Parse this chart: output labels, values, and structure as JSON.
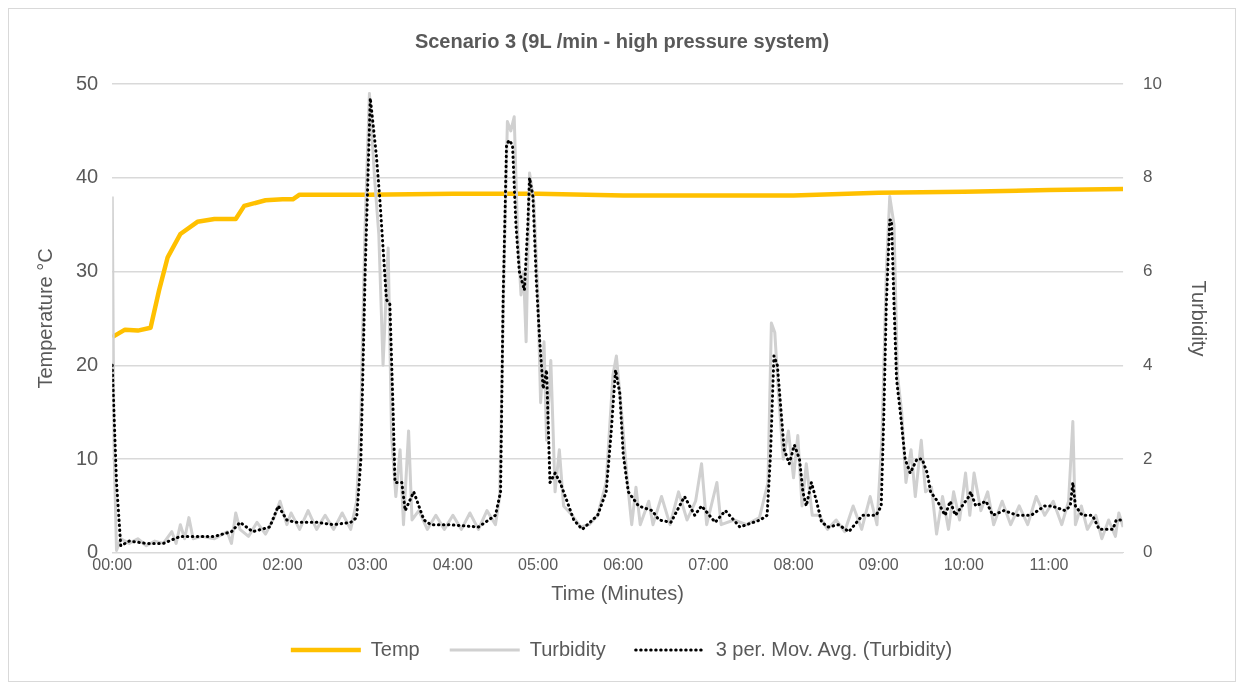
{
  "chart_data": {
    "type": "line",
    "title": "Scenario 3 (9L /min - high pressure system)",
    "xlabel": "Time (Minutes)",
    "ylabel": "Temperature °C",
    "y2label": "Turbidity",
    "xlim": [
      0,
      11.87
    ],
    "xticks": [
      {
        "value": 0,
        "label": "00:00"
      },
      {
        "value": 1,
        "label": "01:00"
      },
      {
        "value": 2,
        "label": "02:00"
      },
      {
        "value": 3,
        "label": "03:00"
      },
      {
        "value": 4,
        "label": "04:00"
      },
      {
        "value": 5,
        "label": "05:00"
      },
      {
        "value": 6,
        "label": "06:00"
      },
      {
        "value": 7,
        "label": "07:00"
      },
      {
        "value": 8,
        "label": "08:00"
      },
      {
        "value": 9,
        "label": "09:00"
      },
      {
        "value": 10,
        "label": "10:00"
      },
      {
        "value": 11,
        "label": "11:00"
      }
    ],
    "ylim": [
      0,
      50
    ],
    "yticks": [
      0,
      10,
      20,
      30,
      40,
      50
    ],
    "y2lim": [
      0,
      10
    ],
    "y2ticks": [
      0,
      2,
      4,
      6,
      8,
      10
    ],
    "grid": "y",
    "legend": "bottom",
    "marker": "none",
    "series": [
      {
        "name": "Temp",
        "color": "#ffc000",
        "line_style": "solid",
        "x": [
          0,
          0.15,
          0.3,
          0.45,
          0.55,
          0.65,
          0.8,
          1.0,
          1.2,
          1.45,
          1.55,
          1.8,
          2.0,
          2.12,
          2.2,
          3,
          4,
          5,
          6,
          7,
          8,
          9,
          10,
          11,
          11.87
        ],
        "values": [
          23,
          23.8,
          23.7,
          24,
          28,
          31.5,
          34,
          35.3,
          35.6,
          35.6,
          37,
          37.6,
          37.7,
          37.7,
          38.2,
          38.2,
          38.3,
          38.3,
          38.1,
          38.1,
          38.1,
          38.4,
          38.5,
          38.7,
          38.8
        ]
      },
      {
        "name": "Turbidity",
        "color": "#d0d0d0",
        "axis": "y2",
        "line_style": "solid",
        "x": [
          0,
          0.02,
          0.05,
          0.1,
          0.2,
          0.3,
          0.4,
          0.5,
          0.6,
          0.7,
          0.75,
          0.8,
          0.85,
          0.9,
          0.95,
          1.05,
          1.2,
          1.35,
          1.4,
          1.45,
          1.5,
          1.6,
          1.7,
          1.8,
          1.9,
          1.97,
          2.05,
          2.1,
          2.2,
          2.3,
          2.4,
          2.5,
          2.6,
          2.7,
          2.8,
          2.87,
          2.92,
          2.97,
          3.02,
          3.08,
          3.13,
          3.18,
          3.24,
          3.28,
          3.33,
          3.38,
          3.42,
          3.48,
          3.52,
          3.6,
          3.7,
          3.8,
          3.9,
          4.0,
          4.1,
          4.2,
          4.3,
          4.4,
          4.5,
          4.55,
          4.6,
          4.64,
          4.68,
          4.72,
          4.76,
          4.8,
          4.83,
          4.86,
          4.9,
          4.95,
          5.0,
          5.03,
          5.07,
          5.1,
          5.15,
          5.2,
          5.25,
          5.3,
          5.4,
          5.5,
          5.6,
          5.7,
          5.8,
          5.88,
          5.92,
          5.98,
          6.05,
          6.1,
          6.15,
          6.2,
          6.3,
          6.35,
          6.45,
          6.55,
          6.65,
          6.75,
          6.85,
          6.92,
          6.98,
          7.1,
          7.15,
          7.3,
          7.45,
          7.6,
          7.7,
          7.74,
          7.78,
          7.82,
          7.88,
          7.94,
          8.0,
          8.05,
          8.1,
          8.15,
          8.22,
          8.3,
          8.4,
          8.5,
          8.6,
          8.7,
          8.8,
          8.9,
          8.98,
          9.04,
          9.09,
          9.13,
          9.18,
          9.22,
          9.27,
          9.32,
          9.38,
          9.43,
          9.5,
          9.55,
          9.62,
          9.68,
          9.75,
          9.82,
          9.88,
          9.95,
          10.02,
          10.07,
          10.12,
          10.2,
          10.28,
          10.35,
          10.45,
          10.55,
          10.65,
          10.75,
          10.85,
          10.95,
          11.05,
          11.15,
          11.23,
          11.28,
          11.31,
          11.38,
          11.45,
          11.55,
          11.62,
          11.7,
          11.78,
          11.82,
          11.87
        ],
        "values": [
          7.6,
          2.3,
          0.05,
          0.3,
          0.2,
          0.3,
          0.15,
          0.25,
          0.2,
          0.45,
          0.2,
          0.6,
          0.3,
          0.75,
          0.3,
          0.35,
          0.3,
          0.45,
          0.2,
          0.85,
          0.5,
          0.35,
          0.65,
          0.4,
          0.75,
          1.1,
          0.6,
          0.85,
          0.5,
          0.9,
          0.5,
          0.8,
          0.5,
          0.85,
          0.5,
          1.1,
          3,
          7,
          9.8,
          8,
          6.8,
          4,
          6.5,
          2.5,
          1.2,
          2.2,
          0.6,
          2.6,
          0.7,
          0.9,
          0.5,
          0.8,
          0.5,
          0.8,
          0.5,
          0.85,
          0.5,
          0.9,
          0.6,
          1.2,
          6,
          9.2,
          9.0,
          9.3,
          6.8,
          5.5,
          6,
          4.5,
          8.1,
          7.5,
          5.4,
          3.2,
          4.5,
          2.4,
          4.1,
          1.3,
          2.2,
          1.0,
          0.8,
          0.55,
          0.6,
          0.8,
          1.5,
          3.8,
          4.2,
          3.0,
          1.5,
          0.6,
          1.4,
          0.6,
          1.1,
          0.6,
          1.2,
          0.6,
          1.3,
          0.7,
          1.1,
          1.9,
          0.6,
          1.5,
          0.6,
          0.7,
          0.6,
          0.75,
          1.5,
          4.9,
          4.7,
          3.5,
          2.0,
          2.6,
          1.6,
          2.5,
          1.0,
          1.9,
          0.8,
          0.8,
          0.5,
          0.7,
          0.45,
          1.0,
          0.5,
          1.2,
          0.6,
          2.5,
          6,
          7.6,
          7,
          3.8,
          3,
          1.5,
          2.2,
          1.2,
          2.4,
          1.3,
          1.4,
          0.4,
          1.2,
          0.5,
          1.3,
          0.7,
          1.7,
          0.8,
          1.7,
          0.9,
          1.3,
          0.6,
          1.1,
          0.6,
          1.0,
          0.6,
          1.2,
          0.8,
          1.1,
          0.6,
          1.1,
          2.8,
          0.6,
          1.0,
          0.5,
          0.8,
          0.3,
          0.7,
          0.35,
          0.85,
          0.55
        ]
      },
      {
        "name": "3 per. Mov. Avg. (Turbidity)",
        "color": "#000000",
        "axis": "y2",
        "line_style": "dotted",
        "x": [
          0,
          0.05,
          0.1,
          0.2,
          0.4,
          0.6,
          0.8,
          1.0,
          1.2,
          1.4,
          1.5,
          1.65,
          1.85,
          1.95,
          2.05,
          2.15,
          2.4,
          2.6,
          2.8,
          2.87,
          2.92,
          2.97,
          3.03,
          3.1,
          3.14,
          3.22,
          3.26,
          3.3,
          3.32,
          3.4,
          3.44,
          3.54,
          3.66,
          3.74,
          3.95,
          4.3,
          4.5,
          4.56,
          4.59,
          4.63,
          4.66,
          4.7,
          4.74,
          4.78,
          4.84,
          4.88,
          4.9,
          4.94,
          4.98,
          5.02,
          5.06,
          5.1,
          5.14,
          5.2,
          5.26,
          5.34,
          5.42,
          5.52,
          5.7,
          5.8,
          5.86,
          5.91,
          5.96,
          6.0,
          6.06,
          6.18,
          6.34,
          6.42,
          6.56,
          6.72,
          6.84,
          6.92,
          7.08,
          7.2,
          7.37,
          7.61,
          7.69,
          7.73,
          7.77,
          7.81,
          7.85,
          7.89,
          7.95,
          8.01,
          8.07,
          8.11,
          8.15,
          8.21,
          8.27,
          8.33,
          8.41,
          8.53,
          8.65,
          8.81,
          8.97,
          9.03,
          9.06,
          9.09,
          9.13,
          9.15,
          9.18,
          9.21,
          9.26,
          9.31,
          9.37,
          9.45,
          9.51,
          9.57,
          9.61,
          9.69,
          9.78,
          9.84,
          9.9,
          9.98,
          10.06,
          10.08,
          10.14,
          10.26,
          10.34,
          10.47,
          10.63,
          10.79,
          10.95,
          11.03,
          11.19,
          11.25,
          11.28,
          11.31,
          11.39,
          11.51,
          11.59,
          11.67,
          11.75,
          11.79,
          11.85
        ],
        "values": [
          4.0,
          1.5,
          0.15,
          0.25,
          0.2,
          0.2,
          0.35,
          0.35,
          0.35,
          0.45,
          0.65,
          0.45,
          0.55,
          1.0,
          0.7,
          0.65,
          0.65,
          0.6,
          0.65,
          0.75,
          2,
          6,
          9.7,
          8.5,
          7.6,
          5.4,
          5.3,
          2.9,
          1.5,
          1.5,
          0.9,
          1.3,
          0.7,
          0.6,
          0.6,
          0.55,
          0.8,
          1.3,
          5.4,
          8.7,
          8.8,
          8.7,
          7.0,
          6.0,
          5.6,
          7.0,
          8.0,
          7.6,
          5.8,
          4.5,
          3.5,
          3.9,
          1.5,
          1.7,
          1.5,
          1.1,
          0.7,
          0.5,
          0.8,
          1.3,
          2.6,
          3.9,
          3.4,
          2.1,
          1.3,
          1.0,
          0.9,
          0.7,
          0.65,
          1.2,
          0.8,
          1.0,
          0.65,
          0.9,
          0.55,
          0.7,
          0.8,
          2.1,
          4.2,
          4.0,
          3.1,
          2.2,
          1.9,
          2.3,
          2.0,
          1.3,
          1.0,
          1.5,
          1.1,
          0.65,
          0.55,
          0.6,
          0.45,
          0.8,
          0.8,
          1.0,
          2.9,
          5.3,
          7.1,
          7.1,
          5.3,
          3.7,
          2.9,
          2.0,
          1.7,
          2.0,
          2.0,
          1.7,
          1.3,
          1.1,
          0.8,
          1.1,
          0.8,
          1.0,
          1.2,
          1.3,
          1.0,
          1.1,
          0.8,
          0.9,
          0.8,
          0.8,
          1.0,
          1.0,
          0.9,
          1.0,
          1.5,
          1.0,
          0.8,
          0.8,
          0.5,
          0.5,
          0.5,
          0.7,
          0.7
        ]
      }
    ]
  }
}
